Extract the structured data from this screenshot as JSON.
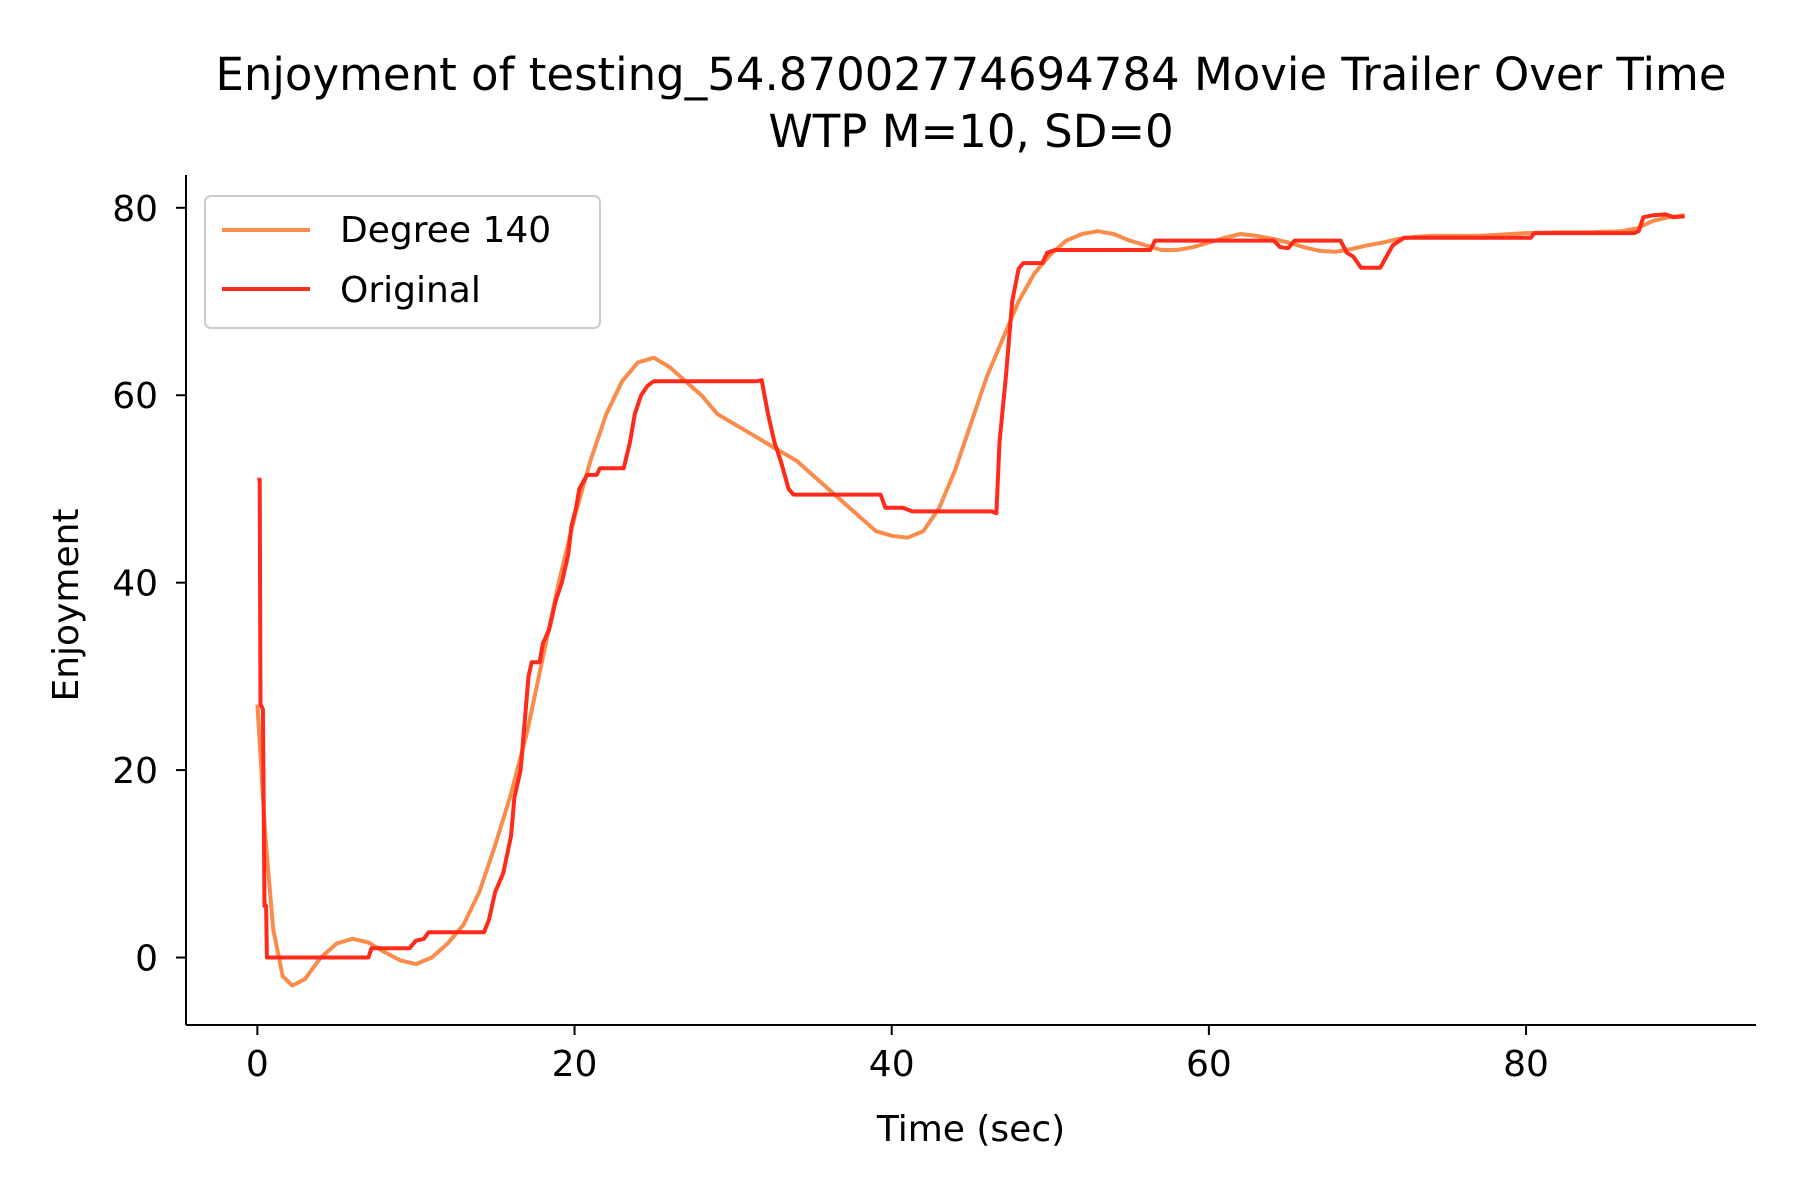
{
  "chart_data": {
    "type": "line",
    "title": "Enjoyment of testing_54.87002774694784 Movie Trailer Over Time",
    "subtitle": "WTP M=10, SD=0",
    "xlabel": "Time (sec)",
    "ylabel": "Enjoyment",
    "xlim": [
      -4.5,
      94.5
    ],
    "ylim": [
      -7.2,
      83.5
    ],
    "xticks": [
      0,
      20,
      40,
      60,
      80
    ],
    "yticks": [
      0,
      20,
      40,
      60,
      80
    ],
    "x_tick_labels": [
      "0",
      "20",
      "40",
      "60",
      "80"
    ],
    "y_tick_labels": [
      "0",
      "20",
      "40",
      "60",
      "80"
    ],
    "grid": false,
    "legend_position": "upper-left",
    "series": [
      {
        "name": "Degree 140",
        "color": "#fa8c4b",
        "points": [
          [
            0,
            27
          ],
          [
            0.5,
            13
          ],
          [
            1,
            3
          ],
          [
            1.6,
            -2
          ],
          [
            2.2,
            -3
          ],
          [
            3,
            -2.3
          ],
          [
            4,
            0
          ],
          [
            5,
            1.5
          ],
          [
            6,
            2
          ],
          [
            7,
            1.6
          ],
          [
            8,
            0.6
          ],
          [
            9,
            -0.3
          ],
          [
            10,
            -0.7
          ],
          [
            11,
            0
          ],
          [
            12,
            1.5
          ],
          [
            13,
            3.5
          ],
          [
            14,
            7
          ],
          [
            15,
            12
          ],
          [
            16,
            17.5
          ],
          [
            17,
            24
          ],
          [
            18,
            32
          ],
          [
            19,
            40
          ],
          [
            20,
            47
          ],
          [
            21,
            53
          ],
          [
            22,
            58
          ],
          [
            23,
            61.5
          ],
          [
            24,
            63.5
          ],
          [
            25,
            64
          ],
          [
            26,
            63
          ],
          [
            27,
            61.5
          ],
          [
            28,
            60
          ],
          [
            29,
            58
          ],
          [
            30,
            57
          ],
          [
            31,
            56
          ],
          [
            32,
            55
          ],
          [
            33,
            54
          ],
          [
            34,
            53
          ],
          [
            35,
            51.5
          ],
          [
            36,
            50
          ],
          [
            37,
            48.5
          ],
          [
            38,
            47
          ],
          [
            39,
            45.5
          ],
          [
            40,
            45
          ],
          [
            41,
            44.8
          ],
          [
            42,
            45.5
          ],
          [
            43,
            48
          ],
          [
            44,
            52
          ],
          [
            45,
            57
          ],
          [
            46,
            62
          ],
          [
            47,
            66
          ],
          [
            48,
            70
          ],
          [
            49,
            73
          ],
          [
            50,
            75
          ],
          [
            51,
            76.5
          ],
          [
            52,
            77.2
          ],
          [
            53,
            77.5
          ],
          [
            54,
            77.2
          ],
          [
            55,
            76.5
          ],
          [
            56,
            76
          ],
          [
            57,
            75.5
          ],
          [
            58,
            75.5
          ],
          [
            59,
            75.8
          ],
          [
            60,
            76.3
          ],
          [
            61,
            76.8
          ],
          [
            62,
            77.2
          ],
          [
            63,
            77
          ],
          [
            64,
            76.7
          ],
          [
            65,
            76.3
          ],
          [
            66,
            75.8
          ],
          [
            67,
            75.4
          ],
          [
            68,
            75.3
          ],
          [
            69,
            75.6
          ],
          [
            70,
            76
          ],
          [
            71,
            76.3
          ],
          [
            72,
            76.7
          ],
          [
            73,
            76.9
          ],
          [
            74,
            77
          ],
          [
            75,
            77
          ],
          [
            76,
            77
          ],
          [
            77,
            77
          ],
          [
            78,
            77.1
          ],
          [
            79,
            77.2
          ],
          [
            80,
            77.3
          ],
          [
            82,
            77.4
          ],
          [
            84,
            77.4
          ],
          [
            86,
            77.5
          ],
          [
            87,
            77.8
          ],
          [
            88,
            78.6
          ],
          [
            89,
            79
          ],
          [
            90,
            79.2
          ]
        ]
      },
      {
        "name": "Original",
        "color": "#ff2a1a",
        "points": [
          [
            0,
            51
          ],
          [
            0.15,
            51
          ],
          [
            0.2,
            27
          ],
          [
            0.35,
            26.5
          ],
          [
            0.45,
            5.5
          ],
          [
            0.55,
            5.5
          ],
          [
            0.6,
            0
          ],
          [
            7,
            0
          ],
          [
            7.2,
            1
          ],
          [
            9.6,
            1
          ],
          [
            10,
            1.8
          ],
          [
            10.5,
            2
          ],
          [
            10.8,
            2.7
          ],
          [
            14.3,
            2.7
          ],
          [
            14.6,
            4
          ],
          [
            15,
            7
          ],
          [
            15.5,
            9
          ],
          [
            16,
            13
          ],
          [
            16.2,
            17
          ],
          [
            16.6,
            20
          ],
          [
            16.8,
            24
          ],
          [
            17.1,
            30
          ],
          [
            17.3,
            31.5
          ],
          [
            17.8,
            31.5
          ],
          [
            18,
            33.5
          ],
          [
            18.4,
            35
          ],
          [
            18.8,
            38
          ],
          [
            19.2,
            40
          ],
          [
            19.6,
            43
          ],
          [
            19.8,
            46
          ],
          [
            20.1,
            48
          ],
          [
            20.3,
            50
          ],
          [
            20.8,
            51.5
          ],
          [
            21.4,
            51.5
          ],
          [
            21.6,
            52.2
          ],
          [
            23.1,
            52.2
          ],
          [
            23.5,
            55
          ],
          [
            23.8,
            58
          ],
          [
            24.2,
            60
          ],
          [
            24.6,
            61
          ],
          [
            25,
            61.5
          ],
          [
            31.5,
            61.5
          ],
          [
            31.8,
            61.6
          ],
          [
            32.2,
            58
          ],
          [
            32.6,
            55
          ],
          [
            33,
            53
          ],
          [
            33.5,
            50
          ],
          [
            33.8,
            49.4
          ],
          [
            39.3,
            49.4
          ],
          [
            39.6,
            48
          ],
          [
            40.7,
            48
          ],
          [
            41.3,
            47.6
          ],
          [
            46.3,
            47.6
          ],
          [
            46.6,
            47.4
          ],
          [
            46.8,
            55
          ],
          [
            47.2,
            62
          ],
          [
            47.6,
            70
          ],
          [
            48,
            73.5
          ],
          [
            48.3,
            74.1
          ],
          [
            49.5,
            74.1
          ],
          [
            49.8,
            75.2
          ],
          [
            50.3,
            75.5
          ],
          [
            56.3,
            75.5
          ],
          [
            56.6,
            76.5
          ],
          [
            64.1,
            76.5
          ],
          [
            64.5,
            75.8
          ],
          [
            65,
            75.7
          ],
          [
            65.4,
            76.5
          ],
          [
            68.3,
            76.5
          ],
          [
            68.7,
            75.2
          ],
          [
            69.1,
            74.8
          ],
          [
            69.6,
            73.6
          ],
          [
            70.8,
            73.6
          ],
          [
            71.2,
            74.8
          ],
          [
            71.6,
            76
          ],
          [
            72.3,
            76.8
          ],
          [
            80.3,
            76.8
          ],
          [
            80.5,
            77.3
          ],
          [
            86.8,
            77.3
          ],
          [
            87.1,
            77.5
          ],
          [
            87.4,
            79
          ],
          [
            88,
            79.2
          ],
          [
            88.8,
            79.3
          ],
          [
            89.3,
            79
          ],
          [
            90,
            79.1
          ]
        ]
      }
    ]
  }
}
